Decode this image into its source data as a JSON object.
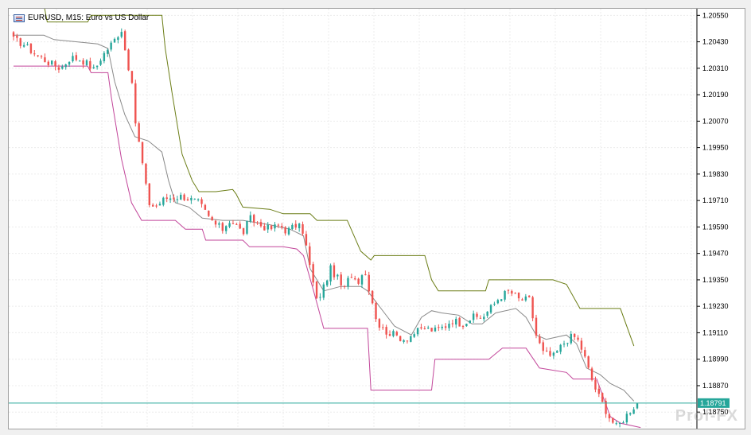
{
  "header": {
    "symbol": "EURUSD",
    "timeframe": "M15",
    "description": "Euro vs US Dollar",
    "title_text": "EURUSD, M15:  Euro vs US Dollar",
    "icon": "chart-window-icon"
  },
  "watermark": "Prof-FX",
  "colors": {
    "bull": "#26a69a",
    "bear": "#ef5350",
    "upper_band": "#6b7d16",
    "middle_band": "#8a8a8a",
    "lower_band": "#c2469a",
    "current_price_line": "#26a69a",
    "grid": "#ececec"
  },
  "chart_data": {
    "type": "candlestick",
    "symbol": "EURUSD",
    "timeframe": "M15",
    "y_ticks": [
      "1.20550",
      "1.20430",
      "1.20310",
      "1.20190",
      "1.20070",
      "1.19950",
      "1.19830",
      "1.19710",
      "1.19590",
      "1.19470",
      "1.19350",
      "1.19230",
      "1.19110",
      "1.18990",
      "1.18870",
      "1.18750"
    ],
    "ylim": [
      1.18675,
      1.2058
    ],
    "current_price": "1.18791",
    "grid": true,
    "candle_count": 180,
    "close_path": [
      [
        0,
        1.2044
      ],
      [
        3,
        1.2042
      ],
      [
        6,
        1.2038
      ],
      [
        10,
        1.2034
      ],
      [
        14,
        1.2031
      ],
      [
        17,
        1.2036
      ],
      [
        20,
        1.2035
      ],
      [
        22,
        1.2033
      ],
      [
        24,
        1.203
      ],
      [
        26,
        1.2036
      ],
      [
        28,
        1.204
      ],
      [
        30,
        1.2044
      ],
      [
        32,
        1.2049
      ],
      [
        33,
        1.204
      ],
      [
        35,
        1.2025
      ],
      [
        36,
        1.2008
      ],
      [
        38,
        1.199
      ],
      [
        40,
        1.197
      ],
      [
        42,
        1.1968
      ],
      [
        45,
        1.1972
      ],
      [
        50,
        1.1973
      ],
      [
        55,
        1.197
      ],
      [
        58,
        1.1963
      ],
      [
        60,
        1.196
      ],
      [
        62,
        1.1958
      ],
      [
        64,
        1.1962
      ],
      [
        66,
        1.196
      ],
      [
        68,
        1.1956
      ],
      [
        70,
        1.1963
      ],
      [
        73,
        1.196
      ],
      [
        76,
        1.1958
      ],
      [
        79,
        1.196
      ],
      [
        81,
        1.1957
      ],
      [
        84,
        1.196
      ],
      [
        86,
        1.1957
      ],
      [
        88,
        1.194
      ],
      [
        90,
        1.1925
      ],
      [
        92,
        1.1932
      ],
      [
        94,
        1.194
      ],
      [
        96,
        1.1936
      ],
      [
        98,
        1.193
      ],
      [
        100,
        1.1938
      ],
      [
        102,
        1.1934
      ],
      [
        104,
        1.194
      ],
      [
        106,
        1.1928
      ],
      [
        108,
        1.1915
      ],
      [
        110,
        1.1912
      ],
      [
        113,
        1.191
      ],
      [
        116,
        1.1908
      ],
      [
        119,
        1.1911
      ],
      [
        122,
        1.1913
      ],
      [
        125,
        1.1912
      ],
      [
        128,
        1.1914
      ],
      [
        130,
        1.1917
      ],
      [
        133,
        1.1915
      ],
      [
        136,
        1.1918
      ],
      [
        139,
        1.1918
      ],
      [
        142,
        1.1923
      ],
      [
        144,
        1.1927
      ],
      [
        147,
        1.193
      ],
      [
        150,
        1.1926
      ],
      [
        153,
        1.1926
      ],
      [
        155,
        1.191
      ],
      [
        157,
        1.1902
      ],
      [
        160,
        1.19
      ],
      [
        163,
        1.1906
      ],
      [
        165,
        1.1909
      ],
      [
        167,
        1.1909
      ],
      [
        169,
        1.1902
      ],
      [
        171,
        1.1892
      ],
      [
        173,
        1.1884
      ],
      [
        175,
        1.1878
      ],
      [
        177,
        1.1872
      ],
      [
        179,
        1.1868
      ],
      [
        181,
        1.1872
      ],
      [
        183,
        1.1876
      ],
      [
        185,
        1.1879
      ]
    ],
    "upper_band": [
      [
        0,
        1.206
      ],
      [
        9,
        1.206
      ],
      [
        10,
        1.2052
      ],
      [
        22,
        1.2052
      ],
      [
        23,
        1.2055
      ],
      [
        44,
        1.2055
      ],
      [
        45,
        1.204
      ],
      [
        47,
        1.202
      ],
      [
        50,
        1.1992
      ],
      [
        53,
        1.198
      ],
      [
        55,
        1.1975
      ],
      [
        60,
        1.1975
      ],
      [
        65,
        1.1976
      ],
      [
        66,
        1.1974
      ],
      [
        68,
        1.1968
      ],
      [
        76,
        1.1967
      ],
      [
        80,
        1.1965
      ],
      [
        88,
        1.1965
      ],
      [
        90,
        1.1962
      ],
      [
        99,
        1.1962
      ],
      [
        103,
        1.1948
      ],
      [
        106,
        1.1944
      ],
      [
        107,
        1.1946
      ],
      [
        122,
        1.1946
      ],
      [
        124,
        1.1935
      ],
      [
        126,
        1.193
      ],
      [
        140,
        1.193
      ],
      [
        141,
        1.1935
      ],
      [
        160,
        1.1935
      ],
      [
        164,
        1.1933
      ],
      [
        168,
        1.1922
      ],
      [
        180,
        1.1922
      ],
      [
        184,
        1.1905
      ]
    ],
    "middle_band": [
      [
        0,
        1.2046
      ],
      [
        9,
        1.2046
      ],
      [
        12,
        1.2044
      ],
      [
        25,
        1.2042
      ],
      [
        28,
        1.204
      ],
      [
        30,
        1.2025
      ],
      [
        33,
        1.201
      ],
      [
        36,
        1.2
      ],
      [
        40,
        1.1998
      ],
      [
        44,
        1.1993
      ],
      [
        46,
        1.198
      ],
      [
        48,
        1.197
      ],
      [
        52,
        1.1968
      ],
      [
        56,
        1.1963
      ],
      [
        62,
        1.1962
      ],
      [
        68,
        1.1962
      ],
      [
        76,
        1.196
      ],
      [
        82,
        1.1958
      ],
      [
        86,
        1.1955
      ],
      [
        88,
        1.194
      ],
      [
        92,
        1.193
      ],
      [
        97,
        1.1932
      ],
      [
        103,
        1.1932
      ],
      [
        105,
        1.193
      ],
      [
        110,
        1.192
      ],
      [
        113,
        1.1914
      ],
      [
        118,
        1.191
      ],
      [
        121,
        1.1918
      ],
      [
        124,
        1.1921
      ],
      [
        127,
        1.192
      ],
      [
        132,
        1.1919
      ],
      [
        136,
        1.1915
      ],
      [
        139,
        1.1915
      ],
      [
        143,
        1.192
      ],
      [
        149,
        1.1922
      ],
      [
        152,
        1.1918
      ],
      [
        155,
        1.191
      ],
      [
        158,
        1.1908
      ],
      [
        164,
        1.191
      ],
      [
        167,
        1.1906
      ],
      [
        170,
        1.1895
      ],
      [
        174,
        1.1892
      ],
      [
        177,
        1.1888
      ],
      [
        181,
        1.1885
      ],
      [
        184,
        1.188
      ]
    ],
    "lower_band": [
      [
        0,
        1.2032
      ],
      [
        22,
        1.2032
      ],
      [
        23,
        1.2029
      ],
      [
        28,
        1.2029
      ],
      [
        29,
        1.2018
      ],
      [
        32,
        1.199
      ],
      [
        35,
        1.197
      ],
      [
        38,
        1.1962
      ],
      [
        48,
        1.1962
      ],
      [
        51,
        1.1958
      ],
      [
        56,
        1.1958
      ],
      [
        57,
        1.1953
      ],
      [
        68,
        1.1953
      ],
      [
        70,
        1.195
      ],
      [
        80,
        1.195
      ],
      [
        84,
        1.1949
      ],
      [
        86,
        1.1946
      ],
      [
        89,
        1.193
      ],
      [
        92,
        1.1913
      ],
      [
        105,
        1.1913
      ],
      [
        106,
        1.1885
      ],
      [
        124,
        1.1885
      ],
      [
        125,
        1.1899
      ],
      [
        141,
        1.1899
      ],
      [
        145,
        1.1904
      ],
      [
        152,
        1.1904
      ],
      [
        156,
        1.1895
      ],
      [
        164,
        1.1893
      ],
      [
        166,
        1.189
      ],
      [
        173,
        1.189
      ],
      [
        177,
        1.1873
      ],
      [
        180,
        1.187
      ],
      [
        186,
        1.1868
      ]
    ]
  }
}
